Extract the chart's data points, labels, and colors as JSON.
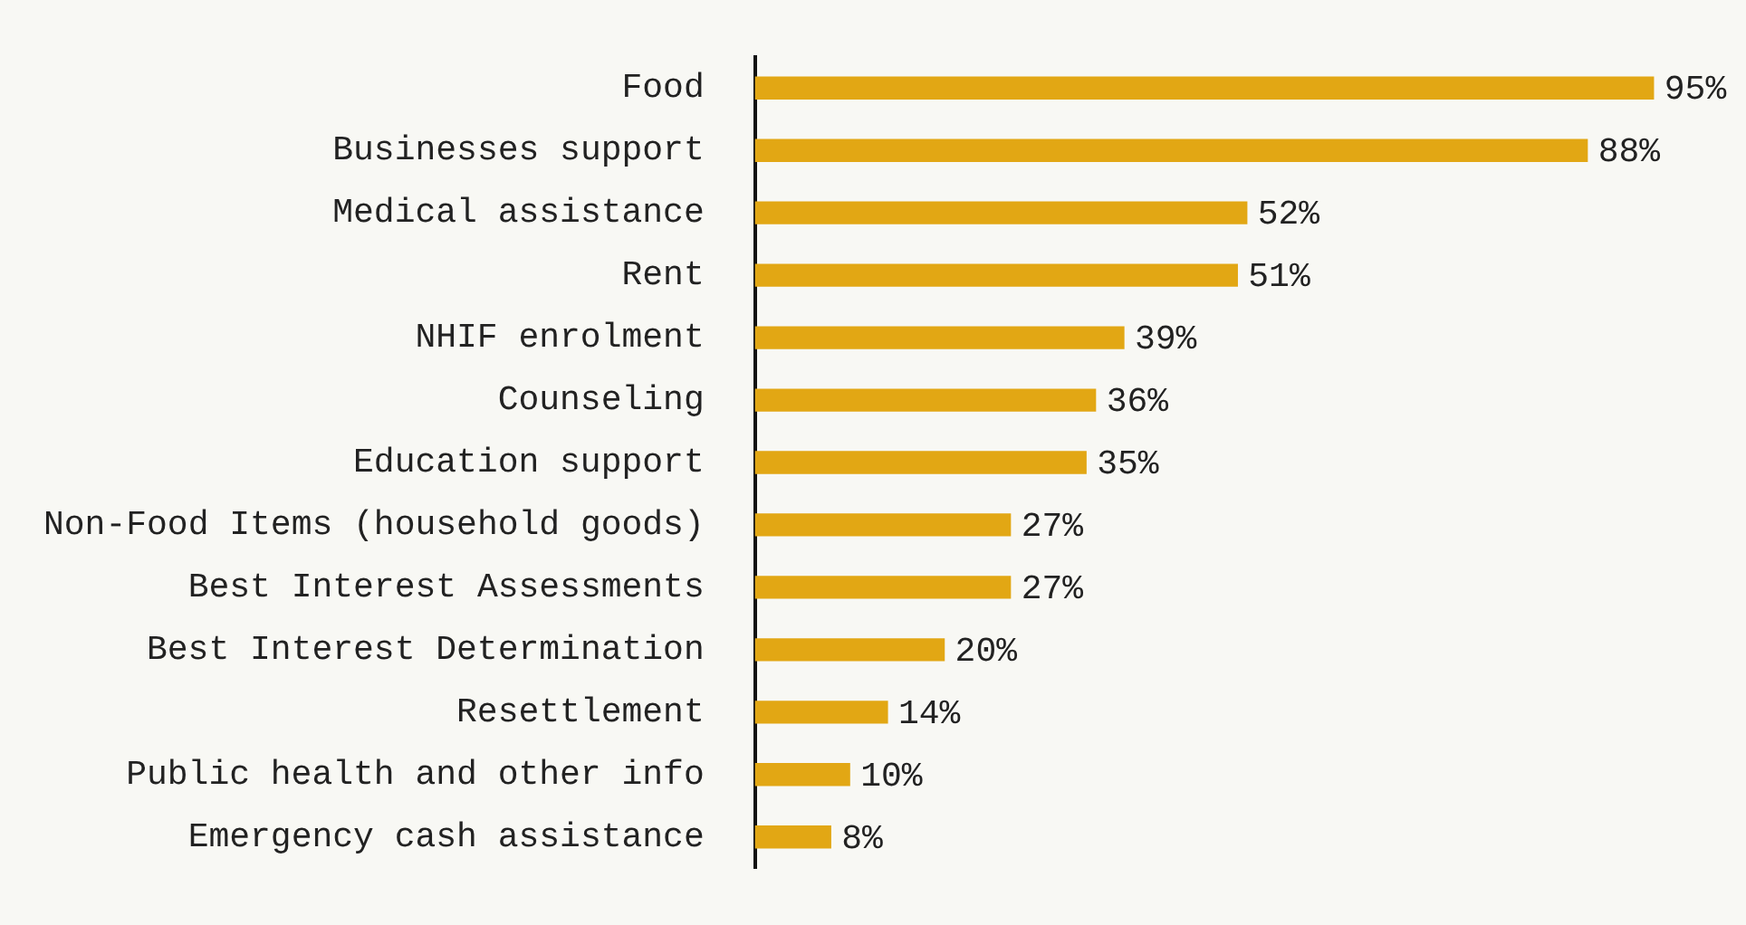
{
  "chart_data": {
    "type": "bar",
    "orientation": "horizontal",
    "categories": [
      "Food",
      "Businesses support",
      "Medical assistance",
      "Rent",
      "NHIF enrolment",
      "Counseling",
      "Education support",
      "Non-Food Items (household goods)",
      "Best Interest Assessments",
      "Best Interest Determination",
      "Resettlement",
      "Public health and other info",
      "Emergency cash assistance"
    ],
    "values": [
      95,
      88,
      52,
      51,
      39,
      36,
      35,
      27,
      27,
      20,
      14,
      10,
      8
    ],
    "value_labels": [
      "95%",
      "88%",
      "52%",
      "51%",
      "39%",
      "36%",
      "35%",
      "27%",
      "27%",
      "20%",
      "14%",
      "10%",
      "8%"
    ],
    "color": "#e2a714",
    "tick_labels": "y"
  }
}
